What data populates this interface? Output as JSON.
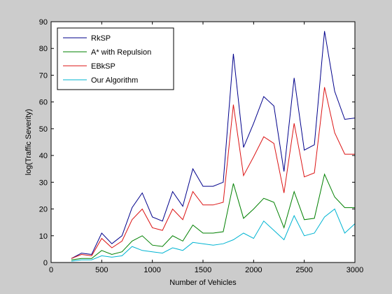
{
  "chart_data": {
    "type": "line",
    "xlabel": "Number of Vehicles",
    "ylabel": "log(Traffic Severity)",
    "xlim": [
      0,
      3000
    ],
    "ylim": [
      0,
      90
    ],
    "xticks": [
      0,
      500,
      1000,
      1500,
      2000,
      2500,
      3000
    ],
    "yticks": [
      0,
      10,
      20,
      30,
      40,
      50,
      60,
      70,
      80,
      90
    ],
    "xtick_labels": [
      "0",
      "500",
      "1000",
      "1500",
      "2000",
      "2500",
      "3000"
    ],
    "ytick_labels": [
      "0",
      "10",
      "20",
      "30",
      "40",
      "50",
      "60",
      "70",
      "80",
      "90"
    ],
    "grid": false,
    "legend_position": "top-left",
    "x": [
      200,
      300,
      400,
      500,
      600,
      700,
      800,
      900,
      1000,
      1100,
      1200,
      1300,
      1400,
      1500,
      1600,
      1700,
      1800,
      1900,
      2000,
      2100,
      2200,
      2300,
      2400,
      2500,
      2600,
      2700,
      2800,
      2900,
      3000
    ],
    "series": [
      {
        "name": "RkSP",
        "color": "#00008b",
        "values": [
          1.5,
          3.5,
          3,
          11,
          7,
          10,
          20.5,
          26,
          17,
          15.5,
          26.5,
          21,
          35,
          28.5,
          28.5,
          30,
          78,
          43,
          52,
          62,
          58.5,
          34,
          69,
          42,
          44,
          86.5,
          64,
          53.5,
          54
        ]
      },
      {
        "name": "A* with Repulsion",
        "color": "#008000",
        "values": [
          1,
          1.5,
          1.5,
          4.5,
          3,
          4,
          8,
          10,
          6.5,
          6,
          10,
          8,
          14,
          11,
          11,
          11.5,
          29.5,
          16.5,
          20,
          24,
          22.5,
          13,
          26.5,
          16,
          16.5,
          33,
          24.5,
          20.5,
          20.5
        ]
      },
      {
        "name": "EBkSP",
        "color": "#dc1414",
        "values": [
          1.5,
          3,
          2.5,
          9,
          5.5,
          8,
          16,
          20,
          13,
          12,
          20,
          16,
          26.5,
          21.5,
          21.5,
          22.5,
          59,
          32.5,
          39.5,
          47,
          44.5,
          26,
          52,
          32,
          33.5,
          65.5,
          48.5,
          40.5,
          40.5
        ]
      },
      {
        "name": "Our Algorithm",
        "color": "#00b4d2",
        "values": [
          0.5,
          1,
          1,
          2.5,
          2,
          2.5,
          6,
          4.5,
          4,
          3.5,
          5.5,
          4.5,
          7.5,
          7,
          6.5,
          7,
          8.5,
          11,
          9,
          15.5,
          12,
          8.5,
          17.5,
          10,
          11,
          17,
          20,
          11,
          14.5
        ]
      }
    ]
  }
}
